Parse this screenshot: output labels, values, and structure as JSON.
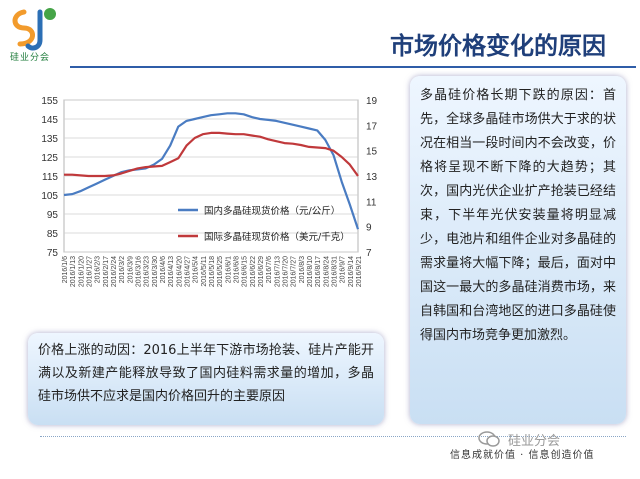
{
  "title": "市场价格变化的原因",
  "logo": {
    "caption": "硅业分会"
  },
  "right_box": {
    "text": "多晶硅价格长期下跌的原因：首先，全球多晶硅市场供大于求的状况在相当一段时间内不会改变，价格将呈现不断下降的大趋势；其次，国内光伏企业扩产抢装已经结束，下半年光伏安装量将明显减少，电池片和组件企业对多晶硅的需求量将大幅下降；最后，面对中国这一最大的多晶硅消费市场，来自韩国和台湾地区的进口多晶硅使得国内市场竞争更加激烈。"
  },
  "bottom_box": {
    "text": "价格上涨的动因：2016上半年下游市场抢装、硅片产能开满以及新建产能释放导致了国内硅料需求量的增加，多晶硅市场供不应求是国内价格回升的主要原因"
  },
  "footer": {
    "slogan": "信息成就价值 · 信息创造价值",
    "watermark": "硅业分会"
  },
  "chart_data": {
    "type": "line",
    "x": [
      "2016/1/6",
      "2016/1/13",
      "2016/1/20",
      "2016/1/27",
      "2016/2/3",
      "2016/2/17",
      "2016/2/24",
      "2016/3/2",
      "2016/3/9",
      "2016/3/16",
      "2016/3/23",
      "2016/3/30",
      "2016/4/6",
      "2016/4/13",
      "2016/4/20",
      "2016/4/27",
      "2016/5/4",
      "2016/5/11",
      "2016/5/18",
      "2016/5/25",
      "2016/6/1",
      "2016/6/8",
      "2016/6/15",
      "2016/6/22",
      "2016/6/29",
      "2016/7/6",
      "2016/7/13",
      "2016/7/20",
      "2016/7/27",
      "2016/8/3",
      "2016/8/10",
      "2016/8/17",
      "2016/8/24",
      "2016/8/31",
      "2016/9/7",
      "2016/9/14",
      "2016/9/21"
    ],
    "y_left": {
      "min": 75,
      "max": 155,
      "ticks": [
        75,
        85,
        95,
        105,
        115,
        125,
        135,
        145,
        155
      ]
    },
    "y_right": {
      "min": 7,
      "max": 19,
      "ticks": [
        7,
        9,
        11,
        13,
        15,
        17,
        19
      ]
    },
    "series": [
      {
        "name": "国内多晶硅现货价格（元/公斤）",
        "axis": "left",
        "color": "#4a7cc2",
        "values": [
          105,
          105.5,
          107,
          109,
          111,
          113,
          115,
          117,
          118,
          118.5,
          119,
          121,
          124,
          131,
          141,
          144,
          145,
          146,
          147,
          147.5,
          148,
          148,
          147.5,
          146,
          145,
          144.5,
          144,
          143,
          142,
          141,
          140,
          139,
          134,
          126,
          112,
          100,
          87
        ]
      },
      {
        "name": "国际多晶硅现货价格（美元/千克）",
        "axis": "right",
        "color": "#c0393b",
        "values": [
          13.1,
          13.1,
          13.05,
          13.0,
          13.0,
          13.0,
          13.05,
          13.2,
          13.4,
          13.6,
          13.7,
          13.75,
          13.8,
          14.1,
          14.4,
          15.4,
          16.0,
          16.3,
          16.4,
          16.4,
          16.35,
          16.3,
          16.3,
          16.2,
          16.1,
          15.9,
          15.75,
          15.6,
          15.55,
          15.45,
          15.3,
          15.25,
          15.2,
          15.0,
          14.5,
          13.9,
          13.0
        ]
      }
    ]
  }
}
